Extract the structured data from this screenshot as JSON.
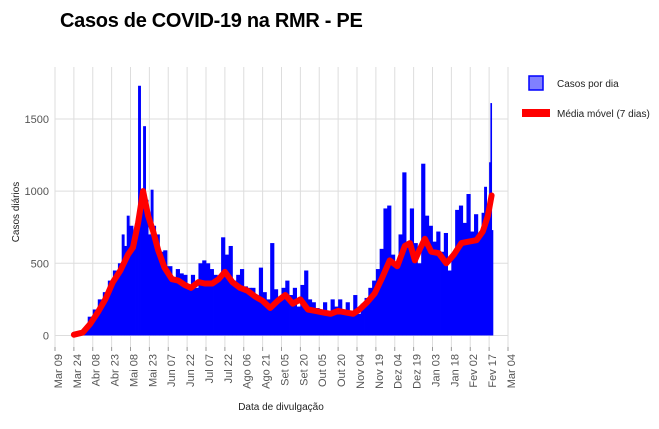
{
  "chart_data": {
    "type": "bar",
    "title": "Casos de COVID-19 na RMR - PE",
    "xlabel": "Data de divulgação",
    "ylabel": "Casos diários",
    "x_range": [
      "2020-03-09",
      "2021-03-04"
    ],
    "ylim": [
      -80,
      1860
    ],
    "y_ticks": [
      0,
      500,
      1000,
      1500
    ],
    "x_ticks": [
      {
        "date": "2020-03-09",
        "label": "Mar 09"
      },
      {
        "date": "2020-03-24",
        "label": "Mar 24"
      },
      {
        "date": "2020-04-08",
        "label": "Abr 08"
      },
      {
        "date": "2020-04-23",
        "label": "Abr 23"
      },
      {
        "date": "2020-05-08",
        "label": "Mai 08"
      },
      {
        "date": "2020-05-23",
        "label": "Mai 23"
      },
      {
        "date": "2020-06-07",
        "label": "Jun 07"
      },
      {
        "date": "2020-06-22",
        "label": "Jun 22"
      },
      {
        "date": "2020-07-07",
        "label": "Jul 07"
      },
      {
        "date": "2020-07-22",
        "label": "Jul 22"
      },
      {
        "date": "2020-08-06",
        "label": "Ago 06"
      },
      {
        "date": "2020-08-21",
        "label": "Ago 21"
      },
      {
        "date": "2020-09-05",
        "label": "Set 05"
      },
      {
        "date": "2020-09-20",
        "label": "Set 20"
      },
      {
        "date": "2020-10-05",
        "label": "Out 05"
      },
      {
        "date": "2020-10-20",
        "label": "Out 20"
      },
      {
        "date": "2020-11-04",
        "label": "Nov 04"
      },
      {
        "date": "2020-11-19",
        "label": "Nov 19"
      },
      {
        "date": "2020-12-04",
        "label": "Dez 04"
      },
      {
        "date": "2020-12-19",
        "label": "Dez 19"
      },
      {
        "date": "2021-01-03",
        "label": "Jan 03"
      },
      {
        "date": "2021-01-18",
        "label": "Jan 18"
      },
      {
        "date": "2021-02-02",
        "label": "Fev 02"
      },
      {
        "date": "2021-02-17",
        "label": "Fev 17"
      },
      {
        "date": "2021-03-04",
        "label": "Mar 04"
      }
    ],
    "grid": true,
    "legend_position": "right",
    "series": [
      {
        "name": "Casos por dia",
        "type": "bar",
        "color": "#0000ff",
        "points": [
          [
            "2020-03-24",
            5
          ],
          [
            "2020-03-28",
            10
          ],
          [
            "2020-04-01",
            50
          ],
          [
            "2020-04-04",
            130
          ],
          [
            "2020-04-08",
            180
          ],
          [
            "2020-04-12",
            250
          ],
          [
            "2020-04-16",
            300
          ],
          [
            "2020-04-20",
            380
          ],
          [
            "2020-04-24",
            450
          ],
          [
            "2020-04-28",
            500
          ],
          [
            "2020-05-01",
            700
          ],
          [
            "2020-05-03",
            620
          ],
          [
            "2020-05-05",
            830
          ],
          [
            "2020-05-07",
            760
          ],
          [
            "2020-05-10",
            600
          ],
          [
            "2020-05-12",
            740
          ],
          [
            "2020-05-14",
            1730
          ],
          [
            "2020-05-16",
            1000
          ],
          [
            "2020-05-18",
            1450
          ],
          [
            "2020-05-20",
            940
          ],
          [
            "2020-05-22",
            700
          ],
          [
            "2020-05-24",
            1010
          ],
          [
            "2020-05-26",
            760
          ],
          [
            "2020-05-28",
            700
          ],
          [
            "2020-05-31",
            580
          ],
          [
            "2020-06-03",
            590
          ],
          [
            "2020-06-06",
            480
          ],
          [
            "2020-06-10",
            400
          ],
          [
            "2020-06-13",
            460
          ],
          [
            "2020-06-16",
            430
          ],
          [
            "2020-06-19",
            420
          ],
          [
            "2020-06-22",
            350
          ],
          [
            "2020-06-25",
            420
          ],
          [
            "2020-06-28",
            330
          ],
          [
            "2020-07-01",
            500
          ],
          [
            "2020-07-04",
            520
          ],
          [
            "2020-07-07",
            500
          ],
          [
            "2020-07-10",
            460
          ],
          [
            "2020-07-13",
            420
          ],
          [
            "2020-07-16",
            390
          ],
          [
            "2020-07-19",
            680
          ],
          [
            "2020-07-22",
            560
          ],
          [
            "2020-07-25",
            620
          ],
          [
            "2020-07-28",
            380
          ],
          [
            "2020-07-31",
            420
          ],
          [
            "2020-08-03",
            460
          ],
          [
            "2020-08-06",
            340
          ],
          [
            "2020-08-09",
            330
          ],
          [
            "2020-08-12",
            330
          ],
          [
            "2020-08-15",
            270
          ],
          [
            "2020-08-18",
            470
          ],
          [
            "2020-08-21",
            300
          ],
          [
            "2020-08-24",
            250
          ],
          [
            "2020-08-27",
            640
          ],
          [
            "2020-08-30",
            320
          ],
          [
            "2020-09-02",
            240
          ],
          [
            "2020-09-05",
            330
          ],
          [
            "2020-09-08",
            380
          ],
          [
            "2020-09-11",
            280
          ],
          [
            "2020-09-14",
            330
          ],
          [
            "2020-09-17",
            200
          ],
          [
            "2020-09-20",
            350
          ],
          [
            "2020-09-23",
            450
          ],
          [
            "2020-09-26",
            250
          ],
          [
            "2020-09-29",
            230
          ],
          [
            "2020-10-02",
            190
          ],
          [
            "2020-10-05",
            180
          ],
          [
            "2020-10-08",
            230
          ],
          [
            "2020-10-11",
            160
          ],
          [
            "2020-10-14",
            250
          ],
          [
            "2020-10-17",
            200
          ],
          [
            "2020-10-20",
            250
          ],
          [
            "2020-10-23",
            180
          ],
          [
            "2020-10-26",
            230
          ],
          [
            "2020-10-29",
            170
          ],
          [
            "2020-11-01",
            280
          ],
          [
            "2020-11-04",
            150
          ],
          [
            "2020-11-07",
            220
          ],
          [
            "2020-11-10",
            260
          ],
          [
            "2020-11-13",
            330
          ],
          [
            "2020-11-16",
            380
          ],
          [
            "2020-11-19",
            460
          ],
          [
            "2020-11-22",
            600
          ],
          [
            "2020-11-25",
            880
          ],
          [
            "2020-11-28",
            900
          ],
          [
            "2020-12-01",
            560
          ],
          [
            "2020-12-04",
            500
          ],
          [
            "2020-12-07",
            700
          ],
          [
            "2020-12-10",
            1130
          ],
          [
            "2020-12-13",
            620
          ],
          [
            "2020-12-16",
            880
          ],
          [
            "2020-12-19",
            640
          ],
          [
            "2020-12-22",
            500
          ],
          [
            "2020-12-25",
            1190
          ],
          [
            "2020-12-28",
            830
          ],
          [
            "2020-12-31",
            760
          ],
          [
            "2021-01-03",
            650
          ],
          [
            "2021-01-06",
            720
          ],
          [
            "2021-01-09",
            580
          ],
          [
            "2021-01-12",
            710
          ],
          [
            "2021-01-15",
            450
          ],
          [
            "2021-01-18",
            550
          ],
          [
            "2021-01-21",
            870
          ],
          [
            "2021-01-24",
            900
          ],
          [
            "2021-01-27",
            780
          ],
          [
            "2021-01-30",
            980
          ],
          [
            "2021-02-02",
            720
          ],
          [
            "2021-02-05",
            840
          ],
          [
            "2021-02-08",
            700
          ],
          [
            "2021-02-11",
            850
          ],
          [
            "2021-02-13",
            1030
          ],
          [
            "2021-02-15",
            800
          ],
          [
            "2021-02-17",
            1200
          ],
          [
            "2021-02-18",
            1610
          ],
          [
            "2021-02-19",
            730
          ]
        ]
      },
      {
        "name": "Média móvel (7 dias)",
        "type": "line",
        "color": "#ff0000",
        "points": [
          [
            "2020-03-24",
            5
          ],
          [
            "2020-03-31",
            20
          ],
          [
            "2020-04-06",
            80
          ],
          [
            "2020-04-12",
            160
          ],
          [
            "2020-04-18",
            250
          ],
          [
            "2020-04-24",
            370
          ],
          [
            "2020-04-30",
            450
          ],
          [
            "2020-05-06",
            560
          ],
          [
            "2020-05-10",
            610
          ],
          [
            "2020-05-14",
            780
          ],
          [
            "2020-05-18",
            1000
          ],
          [
            "2020-05-22",
            830
          ],
          [
            "2020-05-26",
            720
          ],
          [
            "2020-05-30",
            590
          ],
          [
            "2020-06-04",
            470
          ],
          [
            "2020-06-10",
            390
          ],
          [
            "2020-06-15",
            380
          ],
          [
            "2020-06-20",
            350
          ],
          [
            "2020-06-25",
            330
          ],
          [
            "2020-07-01",
            370
          ],
          [
            "2020-07-06",
            360
          ],
          [
            "2020-07-12",
            360
          ],
          [
            "2020-07-17",
            390
          ],
          [
            "2020-07-22",
            440
          ],
          [
            "2020-07-28",
            370
          ],
          [
            "2020-08-03",
            330
          ],
          [
            "2020-08-09",
            310
          ],
          [
            "2020-08-15",
            270
          ],
          [
            "2020-08-21",
            240
          ],
          [
            "2020-08-27",
            190
          ],
          [
            "2020-09-02",
            240
          ],
          [
            "2020-09-08",
            280
          ],
          [
            "2020-09-14",
            220
          ],
          [
            "2020-09-20",
            250
          ],
          [
            "2020-09-26",
            180
          ],
          [
            "2020-10-02",
            170
          ],
          [
            "2020-10-08",
            160
          ],
          [
            "2020-10-14",
            150
          ],
          [
            "2020-10-20",
            170
          ],
          [
            "2020-10-26",
            160
          ],
          [
            "2020-11-01",
            150
          ],
          [
            "2020-11-06",
            180
          ],
          [
            "2020-11-12",
            230
          ],
          [
            "2020-11-18",
            290
          ],
          [
            "2020-11-24",
            400
          ],
          [
            "2020-11-30",
            520
          ],
          [
            "2020-12-06",
            480
          ],
          [
            "2020-12-12",
            620
          ],
          [
            "2020-12-16",
            640
          ],
          [
            "2020-12-20",
            520
          ],
          [
            "2020-12-24",
            600
          ],
          [
            "2020-12-28",
            670
          ],
          [
            "2021-01-02",
            580
          ],
          [
            "2021-01-08",
            570
          ],
          [
            "2021-01-14",
            500
          ],
          [
            "2021-01-20",
            560
          ],
          [
            "2021-01-26",
            640
          ],
          [
            "2021-02-01",
            650
          ],
          [
            "2021-02-07",
            660
          ],
          [
            "2021-02-12",
            720
          ],
          [
            "2021-02-16",
            830
          ],
          [
            "2021-02-19",
            970
          ]
        ]
      }
    ]
  }
}
